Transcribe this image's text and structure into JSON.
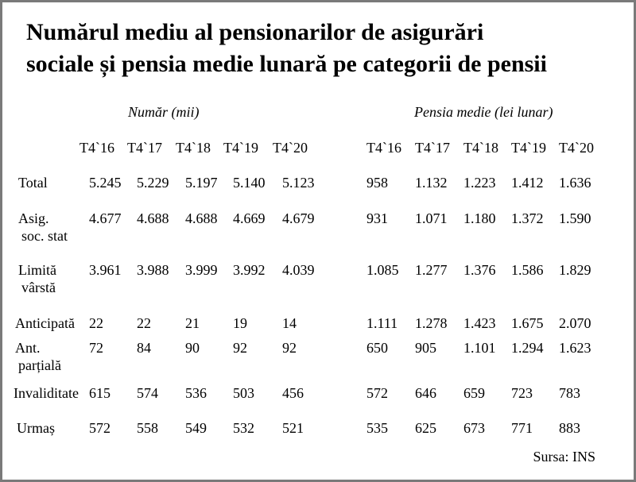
{
  "chart_data": {
    "type": "table",
    "title_line1": "Numărul mediu al pensionarilor de asigurări",
    "title_line2": "sociale și pensia medie lunară pe categorii de pensii",
    "groups": [
      "Număr (mii)",
      "Pensia medie (lei lunar)"
    ],
    "periods": [
      "T4`16",
      "T4`17",
      "T4`18",
      "T4`19",
      "T4`20"
    ],
    "rows": [
      {
        "label1": "Total",
        "label2": "",
        "numar": [
          "5.245",
          "5.229",
          "5.197",
          "5.140",
          "5.123"
        ],
        "pensia": [
          "958",
          "1.132",
          "1.223",
          "1.412",
          "1.636"
        ]
      },
      {
        "label1": "Asig.",
        "label2": "soc. stat",
        "numar": [
          "4.677",
          "4.688",
          "4.688",
          "4.669",
          "4.679"
        ],
        "pensia": [
          "931",
          "1.071",
          "1.180",
          "1.372",
          "1.590"
        ]
      },
      {
        "label1": "Limită",
        "label2": "vârstă",
        "numar": [
          "3.961",
          "3.988",
          "3.999",
          "3.992",
          "4.039"
        ],
        "pensia": [
          "1.085",
          "1.277",
          "1.376",
          "1.586",
          "1.829"
        ]
      },
      {
        "label1": "Anticipată",
        "label2": "",
        "numar": [
          "22",
          "22",
          "21",
          "19",
          "14"
        ],
        "pensia": [
          "1.111",
          "1.278",
          "1.423",
          "1.675",
          "2.070"
        ]
      },
      {
        "label1": "Ant.",
        "label2": "parțială",
        "numar": [
          "72",
          "84",
          "90",
          "92",
          "92"
        ],
        "pensia": [
          "650",
          "905",
          "1.101",
          "1.294",
          "1.623"
        ]
      },
      {
        "label1": "Invaliditate",
        "label2": "",
        "numar": [
          "615",
          "574",
          "536",
          "503",
          "456"
        ],
        "pensia": [
          "572",
          "646",
          "659",
          "723",
          "783"
        ]
      },
      {
        "label1": "Urmaș",
        "label2": "",
        "numar": [
          "572",
          "558",
          "549",
          "532",
          "521"
        ],
        "pensia": [
          "535",
          "625",
          "673",
          "771",
          "883"
        ]
      }
    ],
    "source": "Sursa: INS"
  },
  "colors": {
    "frame_border": "#7a7a7a",
    "text": "#000000",
    "background": "#ffffff"
  }
}
